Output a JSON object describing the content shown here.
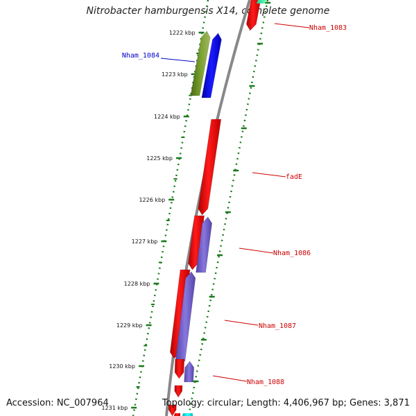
{
  "title": "Nitrobacter hamburgensis X14, complete genome",
  "footer": {
    "accession": "Accession: NC_007964",
    "summary": "Topology: circular; Length: 4,406,967 bp; Genes: 3,871"
  },
  "colors": {
    "backbone": "#888888",
    "tick": "#1a7a1a",
    "forward_gene": "#ff0000",
    "reverse_gene": "#7766cc",
    "highlight_gene": "#0000ff",
    "olive_gene": "#6b8e23",
    "cyan_gene": "#00e5e5",
    "label_red": "#cc0000",
    "label_blue": "#0000cc"
  },
  "tick_labels": [
    "1222 kbp",
    "1223 kbp",
    "1224 kbp",
    "1225 kbp",
    "1226 kbp",
    "1227 kbp",
    "1228 kbp",
    "1229 kbp",
    "1230 kbp",
    "1231 kbp"
  ],
  "gene_labels": [
    {
      "text": "Nham_1083",
      "color": "red"
    },
    {
      "text": "Nham_1084",
      "color": "blue"
    },
    {
      "text": "fadE",
      "color": "red"
    },
    {
      "text": "Nham_1086",
      "color": "red"
    },
    {
      "text": "Nham_1087",
      "color": "red"
    },
    {
      "text": "Nham_1088",
      "color": "red"
    }
  ]
}
